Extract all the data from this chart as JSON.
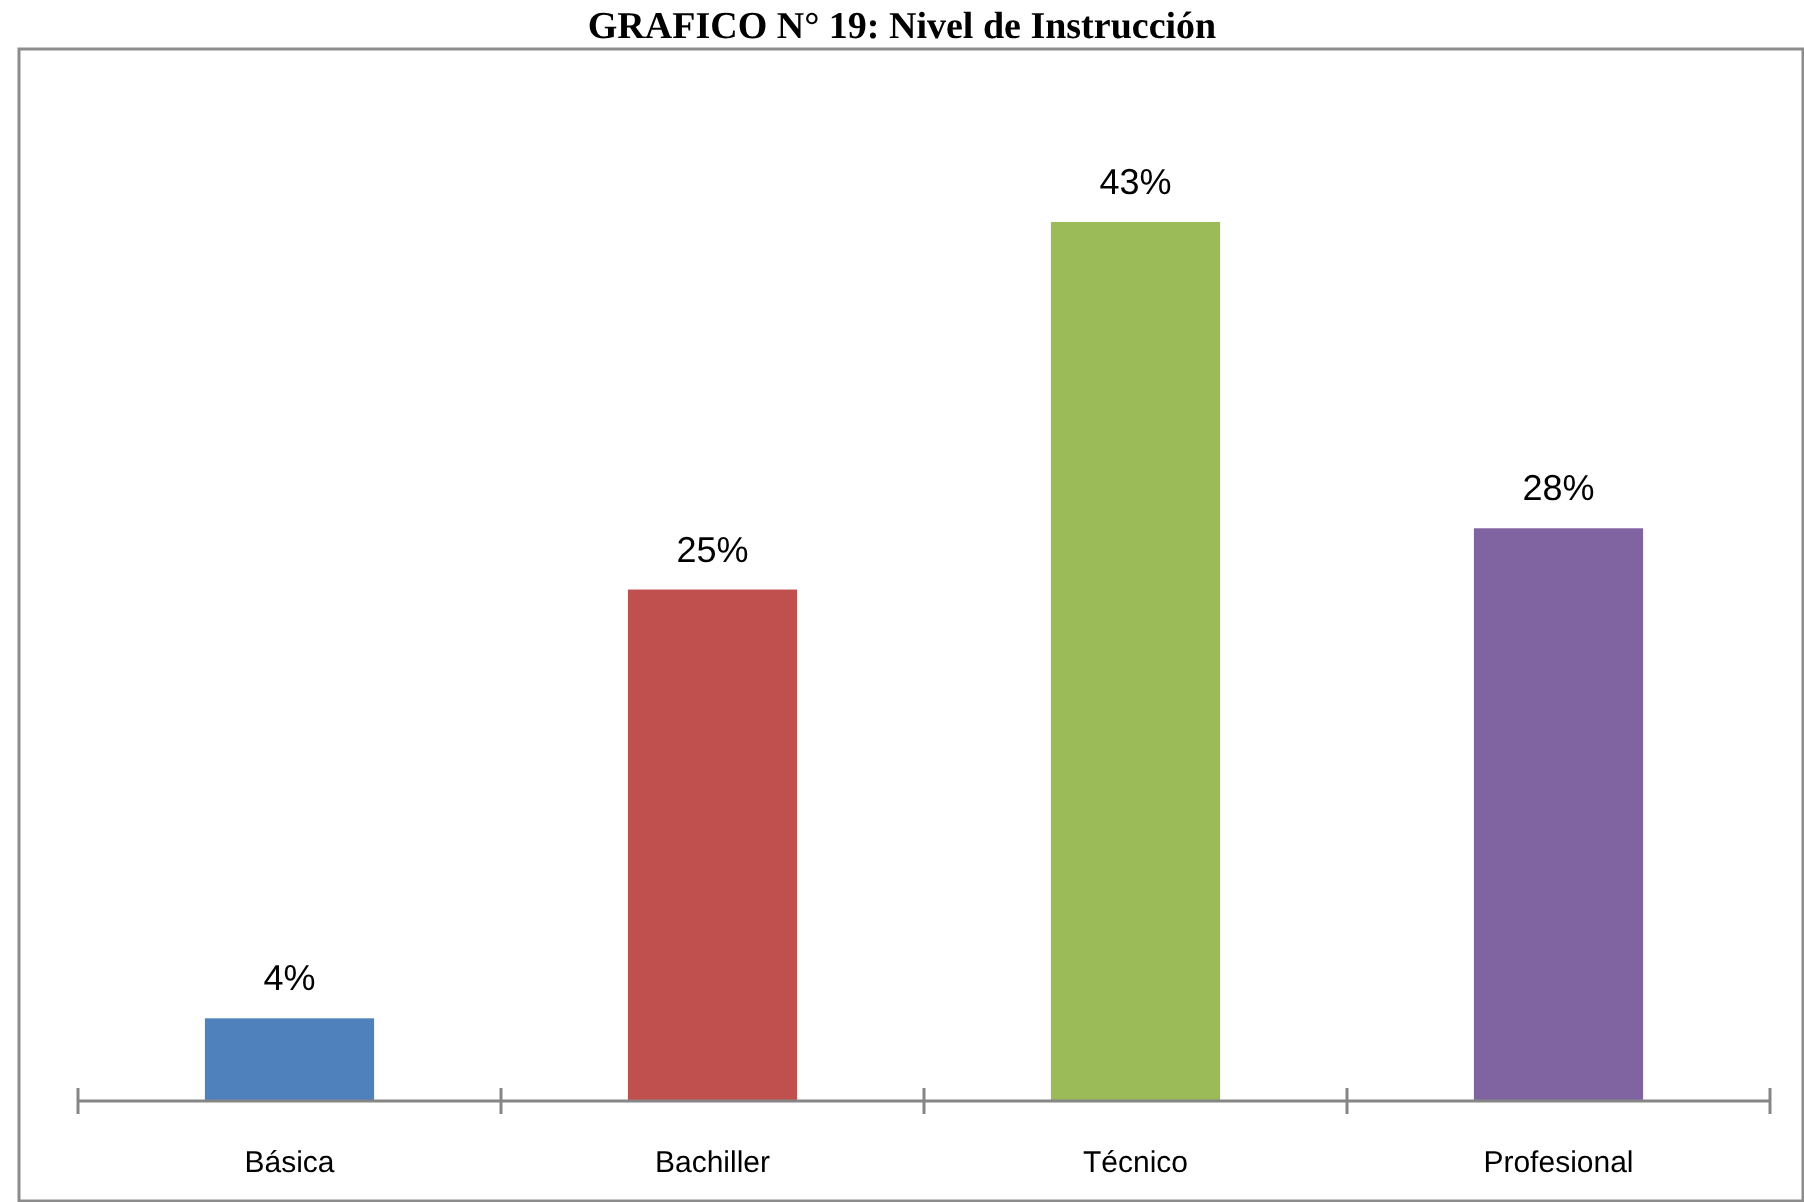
{
  "chart_data": {
    "type": "bar",
    "title": "GRAFICO N° 19: Nivel de Instrucción",
    "categories": [
      "Básica",
      "Bachiller",
      "Técnico",
      "Profesional"
    ],
    "values": [
      4,
      25,
      43,
      28
    ],
    "colors": [
      "#4f81bd",
      "#c0504d",
      "#9bbb59",
      "#8064a2"
    ],
    "value_labels": [
      "4%",
      "25%",
      "43%",
      "28%"
    ]
  }
}
